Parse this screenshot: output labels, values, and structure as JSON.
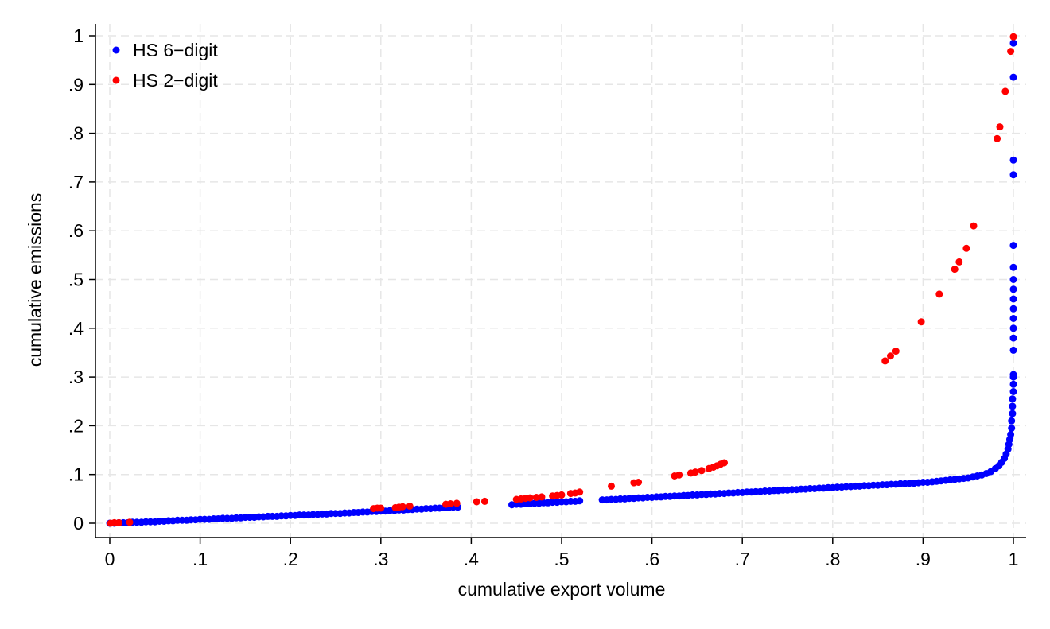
{
  "chart_data": {
    "type": "scatter",
    "title": "",
    "xlabel": "cumulative export volume",
    "ylabel": "cumulative emissions",
    "xlim": [
      0,
      1
    ],
    "ylim": [
      0,
      1
    ],
    "grid": true,
    "legend_position": "top-left",
    "x_ticks": [
      "0",
      ".1",
      ".2",
      ".3",
      ".4",
      ".5",
      ".6",
      ".7",
      ".8",
      ".9",
      "1"
    ],
    "y_ticks": [
      "0",
      ".1",
      ".2",
      ".3",
      ".4",
      ".5",
      ".6",
      ".7",
      ".8",
      ".9",
      "1"
    ],
    "series": [
      {
        "name": "HS 6−digit",
        "color": "#0000ff",
        "points": [
          [
            0.0,
            0.0
          ],
          [
            0.005,
            0.0
          ],
          [
            0.01,
            0.001
          ],
          [
            0.015,
            0.001
          ],
          [
            0.02,
            0.001
          ],
          [
            0.025,
            0.002
          ],
          [
            0.03,
            0.002
          ],
          [
            0.035,
            0.002
          ],
          [
            0.04,
            0.003
          ],
          [
            0.045,
            0.003
          ],
          [
            0.05,
            0.003
          ],
          [
            0.055,
            0.004
          ],
          [
            0.06,
            0.004
          ],
          [
            0.065,
            0.005
          ],
          [
            0.07,
            0.005
          ],
          [
            0.075,
            0.006
          ],
          [
            0.08,
            0.006
          ],
          [
            0.085,
            0.006
          ],
          [
            0.09,
            0.007
          ],
          [
            0.095,
            0.007
          ],
          [
            0.1,
            0.008
          ],
          [
            0.105,
            0.008
          ],
          [
            0.11,
            0.008
          ],
          [
            0.115,
            0.009
          ],
          [
            0.12,
            0.009
          ],
          [
            0.125,
            0.01
          ],
          [
            0.13,
            0.01
          ],
          [
            0.135,
            0.01
          ],
          [
            0.14,
            0.011
          ],
          [
            0.145,
            0.011
          ],
          [
            0.15,
            0.012
          ],
          [
            0.155,
            0.012
          ],
          [
            0.16,
            0.012
          ],
          [
            0.165,
            0.013
          ],
          [
            0.17,
            0.013
          ],
          [
            0.175,
            0.014
          ],
          [
            0.18,
            0.014
          ],
          [
            0.185,
            0.014
          ],
          [
            0.19,
            0.015
          ],
          [
            0.195,
            0.015
          ],
          [
            0.2,
            0.016
          ],
          [
            0.205,
            0.016
          ],
          [
            0.21,
            0.017
          ],
          [
            0.215,
            0.017
          ],
          [
            0.22,
            0.017
          ],
          [
            0.225,
            0.018
          ],
          [
            0.23,
            0.018
          ],
          [
            0.235,
            0.019
          ],
          [
            0.24,
            0.019
          ],
          [
            0.245,
            0.02
          ],
          [
            0.25,
            0.02
          ],
          [
            0.255,
            0.02
          ],
          [
            0.26,
            0.021
          ],
          [
            0.265,
            0.021
          ],
          [
            0.27,
            0.022
          ],
          [
            0.275,
            0.022
          ],
          [
            0.28,
            0.023
          ],
          [
            0.285,
            0.023
          ],
          [
            0.29,
            0.024
          ],
          [
            0.295,
            0.024
          ],
          [
            0.3,
            0.025
          ],
          [
            0.305,
            0.025
          ],
          [
            0.31,
            0.026
          ],
          [
            0.315,
            0.026
          ],
          [
            0.32,
            0.027
          ],
          [
            0.325,
            0.027
          ],
          [
            0.33,
            0.028
          ],
          [
            0.335,
            0.028
          ],
          [
            0.34,
            0.029
          ],
          [
            0.345,
            0.029
          ],
          [
            0.35,
            0.03
          ],
          [
            0.355,
            0.03
          ],
          [
            0.36,
            0.031
          ],
          [
            0.365,
            0.031
          ],
          [
            0.37,
            0.032
          ],
          [
            0.375,
            0.032
          ],
          [
            0.38,
            0.033
          ],
          [
            0.385,
            0.033
          ],
          [
            0.445,
            0.038
          ],
          [
            0.45,
            0.039
          ],
          [
            0.455,
            0.039
          ],
          [
            0.46,
            0.04
          ],
          [
            0.465,
            0.04
          ],
          [
            0.47,
            0.041
          ],
          [
            0.475,
            0.041
          ],
          [
            0.48,
            0.042
          ],
          [
            0.485,
            0.042
          ],
          [
            0.49,
            0.043
          ],
          [
            0.495,
            0.043
          ],
          [
            0.5,
            0.044
          ],
          [
            0.505,
            0.044
          ],
          [
            0.51,
            0.045
          ],
          [
            0.515,
            0.045
          ],
          [
            0.52,
            0.046
          ],
          [
            0.545,
            0.048
          ],
          [
            0.55,
            0.048
          ],
          [
            0.555,
            0.049
          ],
          [
            0.56,
            0.049
          ],
          [
            0.565,
            0.05
          ],
          [
            0.57,
            0.05
          ],
          [
            0.575,
            0.051
          ],
          [
            0.58,
            0.051
          ],
          [
            0.585,
            0.052
          ],
          [
            0.59,
            0.052
          ],
          [
            0.595,
            0.053
          ],
          [
            0.6,
            0.053
          ],
          [
            0.605,
            0.054
          ],
          [
            0.61,
            0.054
          ],
          [
            0.615,
            0.055
          ],
          [
            0.62,
            0.055
          ],
          [
            0.625,
            0.056
          ],
          [
            0.63,
            0.056
          ],
          [
            0.635,
            0.057
          ],
          [
            0.64,
            0.057
          ],
          [
            0.645,
            0.058
          ],
          [
            0.65,
            0.058
          ],
          [
            0.655,
            0.059
          ],
          [
            0.66,
            0.059
          ],
          [
            0.665,
            0.06
          ],
          [
            0.67,
            0.06
          ],
          [
            0.675,
            0.061
          ],
          [
            0.68,
            0.061
          ],
          [
            0.685,
            0.062
          ],
          [
            0.69,
            0.062
          ],
          [
            0.695,
            0.063
          ],
          [
            0.7,
            0.063
          ],
          [
            0.705,
            0.064
          ],
          [
            0.71,
            0.064
          ],
          [
            0.715,
            0.065
          ],
          [
            0.72,
            0.065
          ],
          [
            0.725,
            0.066
          ],
          [
            0.73,
            0.066
          ],
          [
            0.735,
            0.067
          ],
          [
            0.74,
            0.067
          ],
          [
            0.745,
            0.068
          ],
          [
            0.75,
            0.068
          ],
          [
            0.755,
            0.069
          ],
          [
            0.76,
            0.069
          ],
          [
            0.765,
            0.07
          ],
          [
            0.77,
            0.07
          ],
          [
            0.775,
            0.071
          ],
          [
            0.78,
            0.071
          ],
          [
            0.785,
            0.072
          ],
          [
            0.79,
            0.072
          ],
          [
            0.795,
            0.073
          ],
          [
            0.8,
            0.073
          ],
          [
            0.805,
            0.074
          ],
          [
            0.81,
            0.074
          ],
          [
            0.815,
            0.075
          ],
          [
            0.82,
            0.075
          ],
          [
            0.825,
            0.076
          ],
          [
            0.83,
            0.076
          ],
          [
            0.835,
            0.077
          ],
          [
            0.84,
            0.077
          ],
          [
            0.845,
            0.078
          ],
          [
            0.85,
            0.078
          ],
          [
            0.855,
            0.079
          ],
          [
            0.86,
            0.079
          ],
          [
            0.865,
            0.08
          ],
          [
            0.87,
            0.08
          ],
          [
            0.875,
            0.081
          ],
          [
            0.88,
            0.081
          ],
          [
            0.885,
            0.082
          ],
          [
            0.89,
            0.082
          ],
          [
            0.895,
            0.083
          ],
          [
            0.9,
            0.084
          ],
          [
            0.905,
            0.084
          ],
          [
            0.91,
            0.085
          ],
          [
            0.915,
            0.086
          ],
          [
            0.92,
            0.087
          ],
          [
            0.925,
            0.088
          ],
          [
            0.93,
            0.089
          ],
          [
            0.935,
            0.09
          ],
          [
            0.94,
            0.091
          ],
          [
            0.945,
            0.092
          ],
          [
            0.95,
            0.093
          ],
          [
            0.955,
            0.095
          ],
          [
            0.96,
            0.097
          ],
          [
            0.965,
            0.099
          ],
          [
            0.97,
            0.102
          ],
          [
            0.975,
            0.106
          ],
          [
            0.98,
            0.112
          ],
          [
            0.984,
            0.118
          ],
          [
            0.987,
            0.125
          ],
          [
            0.99,
            0.133
          ],
          [
            0.992,
            0.142
          ],
          [
            0.994,
            0.152
          ],
          [
            0.995,
            0.162
          ],
          [
            0.996,
            0.172
          ],
          [
            0.997,
            0.182
          ],
          [
            0.998,
            0.195
          ],
          [
            0.998,
            0.21
          ],
          [
            0.999,
            0.225
          ],
          [
            0.999,
            0.24
          ],
          [
            0.999,
            0.255
          ],
          [
            1.0,
            0.27
          ],
          [
            1.0,
            0.285
          ],
          [
            1.0,
            0.3
          ],
          [
            1.0,
            0.305
          ],
          [
            1.0,
            0.355
          ],
          [
            1.0,
            0.38
          ],
          [
            1.0,
            0.4
          ],
          [
            1.0,
            0.42
          ],
          [
            1.0,
            0.44
          ],
          [
            1.0,
            0.46
          ],
          [
            1.0,
            0.48
          ],
          [
            1.0,
            0.5
          ],
          [
            1.0,
            0.525
          ],
          [
            1.0,
            0.57
          ],
          [
            1.0,
            0.715
          ],
          [
            1.0,
            0.745
          ],
          [
            1.0,
            0.915
          ],
          [
            1.0,
            0.985
          ]
        ]
      },
      {
        "name": "HS 2−digit",
        "color": "#ff0000",
        "points": [
          [
            0.001,
            0.0
          ],
          [
            0.005,
            0.001
          ],
          [
            0.01,
            0.001
          ],
          [
            0.022,
            0.002
          ],
          [
            0.292,
            0.03
          ],
          [
            0.296,
            0.031
          ],
          [
            0.3,
            0.031
          ],
          [
            0.316,
            0.032
          ],
          [
            0.32,
            0.033
          ],
          [
            0.324,
            0.034
          ],
          [
            0.332,
            0.035
          ],
          [
            0.372,
            0.039
          ],
          [
            0.377,
            0.04
          ],
          [
            0.384,
            0.041
          ],
          [
            0.406,
            0.044
          ],
          [
            0.415,
            0.045
          ],
          [
            0.45,
            0.049
          ],
          [
            0.455,
            0.05
          ],
          [
            0.46,
            0.051
          ],
          [
            0.465,
            0.052
          ],
          [
            0.472,
            0.053
          ],
          [
            0.478,
            0.054
          ],
          [
            0.49,
            0.056
          ],
          [
            0.495,
            0.057
          ],
          [
            0.5,
            0.058
          ],
          [
            0.51,
            0.061
          ],
          [
            0.515,
            0.062
          ],
          [
            0.52,
            0.064
          ],
          [
            0.555,
            0.076
          ],
          [
            0.58,
            0.083
          ],
          [
            0.585,
            0.084
          ],
          [
            0.625,
            0.097
          ],
          [
            0.63,
            0.099
          ],
          [
            0.643,
            0.103
          ],
          [
            0.648,
            0.105
          ],
          [
            0.655,
            0.108
          ],
          [
            0.663,
            0.112
          ],
          [
            0.668,
            0.115
          ],
          [
            0.672,
            0.118
          ],
          [
            0.676,
            0.121
          ],
          [
            0.68,
            0.124
          ],
          [
            0.858,
            0.333
          ],
          [
            0.864,
            0.343
          ],
          [
            0.87,
            0.353
          ],
          [
            0.898,
            0.413
          ],
          [
            0.918,
            0.47
          ],
          [
            0.935,
            0.521
          ],
          [
            0.94,
            0.536
          ],
          [
            0.948,
            0.564
          ],
          [
            0.956,
            0.61
          ],
          [
            0.982,
            0.789
          ],
          [
            0.985,
            0.813
          ],
          [
            0.991,
            0.886
          ],
          [
            0.997,
            0.968
          ],
          [
            1.0,
            0.998
          ]
        ]
      }
    ]
  }
}
